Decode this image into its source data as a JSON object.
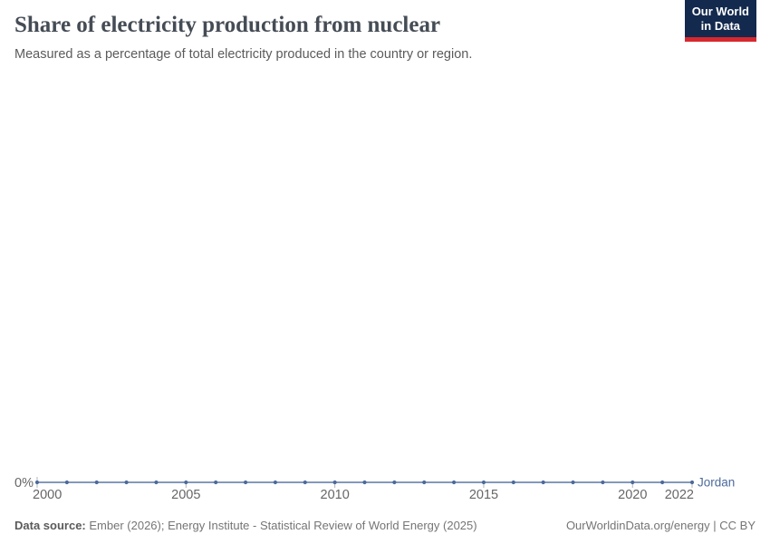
{
  "header": {
    "title": "Share of electricity production from nuclear",
    "subtitle": "Measured as a percentage of total electricity produced in the country or region."
  },
  "logo": {
    "line1": "Our World",
    "line2": "in Data",
    "bg_color": "#13294e",
    "accent_color": "#d7282f"
  },
  "chart_data": {
    "type": "line",
    "title": "Share of electricity production from nuclear",
    "x": [
      2000,
      2001,
      2002,
      2003,
      2004,
      2005,
      2006,
      2007,
      2008,
      2009,
      2010,
      2011,
      2012,
      2013,
      2014,
      2015,
      2016,
      2017,
      2018,
      2019,
      2020,
      2021,
      2022
    ],
    "series": [
      {
        "name": "Jordan",
        "values": [
          0,
          0,
          0,
          0,
          0,
          0,
          0,
          0,
          0,
          0,
          0,
          0,
          0,
          0,
          0,
          0,
          0,
          0,
          0,
          0,
          0,
          0,
          0
        ],
        "color": "#4C6A9C"
      }
    ],
    "x_tick_labels": [
      2000,
      2005,
      2010,
      2015,
      2020,
      2022
    ],
    "y_tick_labels": [
      "0%"
    ],
    "xlabel": "",
    "ylabel": "",
    "grid": "off",
    "legend_position": "line-end-label",
    "tick_label_color": "#666666"
  },
  "footer": {
    "datasource_label": "Data source:",
    "datasource_text": "Ember (2026); Energy Institute - Statistical Review of World Energy (2025)",
    "right_text": "OurWorldinData.org/energy | CC BY"
  }
}
